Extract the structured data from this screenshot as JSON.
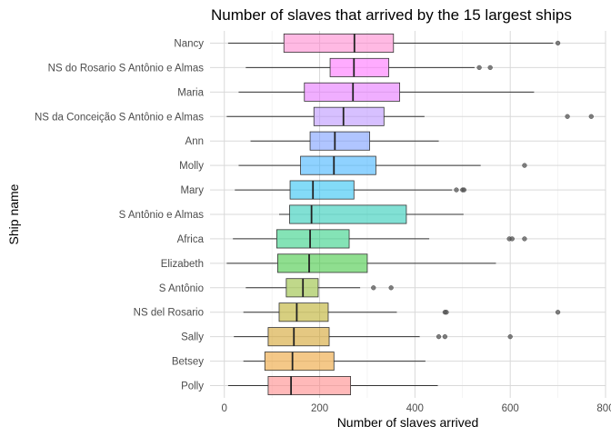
{
  "chart_data": {
    "type": "boxplot",
    "orientation": "horizontal",
    "title": "Number of slaves that arrived by the 15 largest ships",
    "xlabel": "Number of slaves arrived",
    "ylabel": "Ship name",
    "xlim": [
      -30,
      800
    ],
    "x_ticks": [
      0,
      200,
      400,
      600,
      800
    ],
    "x_tick_labels": [
      "0",
      "200",
      "400",
      "600",
      "800"
    ],
    "grid": true,
    "legend": "none",
    "series": [
      {
        "name": "Nancy",
        "whisker_low": 8,
        "q1": 125,
        "median": 273,
        "q3": 355,
        "whisker_high": 690,
        "outliers": [
          700
        ],
        "color": "#ff7fcc"
      },
      {
        "name": "NS do Rosario S Antônio e Almas",
        "whisker_low": 45,
        "q1": 222,
        "median": 272,
        "q3": 345,
        "whisker_high": 525,
        "outliers": [
          535,
          558
        ],
        "color": "#ff66ff"
      },
      {
        "name": "Maria",
        "whisker_low": 30,
        "q1": 168,
        "median": 270,
        "q3": 368,
        "whisker_high": 650,
        "outliers": [],
        "color": "#e36bff"
      },
      {
        "name": "NS da Conceição S Antônio e Almas",
        "whisker_low": 5,
        "q1": 188,
        "median": 250,
        "q3": 335,
        "whisker_high": 420,
        "outliers": [
          720,
          770
        ],
        "color": "#b78cff"
      },
      {
        "name": "Ann",
        "whisker_low": 55,
        "q1": 180,
        "median": 232,
        "q3": 305,
        "whisker_high": 450,
        "outliers": [],
        "color": "#6f96ff"
      },
      {
        "name": "Molly",
        "whisker_low": 30,
        "q1": 160,
        "median": 230,
        "q3": 318,
        "whisker_high": 538,
        "outliers": [
          630
        ],
        "color": "#33adff"
      },
      {
        "name": "Mary",
        "whisker_low": 22,
        "q1": 138,
        "median": 186,
        "q3": 272,
        "whisker_high": 478,
        "outliers": [
          487,
          500,
          503
        ],
        "color": "#1ebdf2"
      },
      {
        "name": "S Antônio e Almas",
        "whisker_low": 115,
        "q1": 137,
        "median": 183,
        "q3": 382,
        "whisker_high": 502,
        "outliers": [],
        "color": "#19c6b0"
      },
      {
        "name": "Africa",
        "whisker_low": 18,
        "q1": 110,
        "median": 180,
        "q3": 262,
        "whisker_high": 430,
        "outliers": [
          598,
          604,
          630
        ],
        "color": "#1fcc7a"
      },
      {
        "name": "Elizabeth",
        "whisker_low": 5,
        "q1": 112,
        "median": 178,
        "q3": 300,
        "whisker_high": 570,
        "outliers": [],
        "color": "#33c233"
      },
      {
        "name": "S Antônio",
        "whisker_low": 45,
        "q1": 130,
        "median": 165,
        "q3": 197,
        "whisker_high": 285,
        "outliers": [
          313,
          350
        ],
        "color": "#8cb82a"
      },
      {
        "name": "NS del Rosario",
        "whisker_low": 40,
        "q1": 115,
        "median": 152,
        "q3": 218,
        "whisker_high": 362,
        "outliers": [
          463,
          466,
          700
        ],
        "color": "#b7a718"
      },
      {
        "name": "Sally",
        "whisker_low": 20,
        "q1": 92,
        "median": 146,
        "q3": 220,
        "whisker_high": 410,
        "outliers": [
          450,
          463,
          600
        ],
        "color": "#cf9a1c"
      },
      {
        "name": "Betsey",
        "whisker_low": 40,
        "q1": 85,
        "median": 143,
        "q3": 230,
        "whisker_high": 422,
        "outliers": [],
        "color": "#eb9a27"
      },
      {
        "name": "Polly",
        "whisker_low": 8,
        "q1": 92,
        "median": 140,
        "q3": 265,
        "whisker_high": 448,
        "outliers": [],
        "color": "#ff7f7f"
      }
    ]
  }
}
